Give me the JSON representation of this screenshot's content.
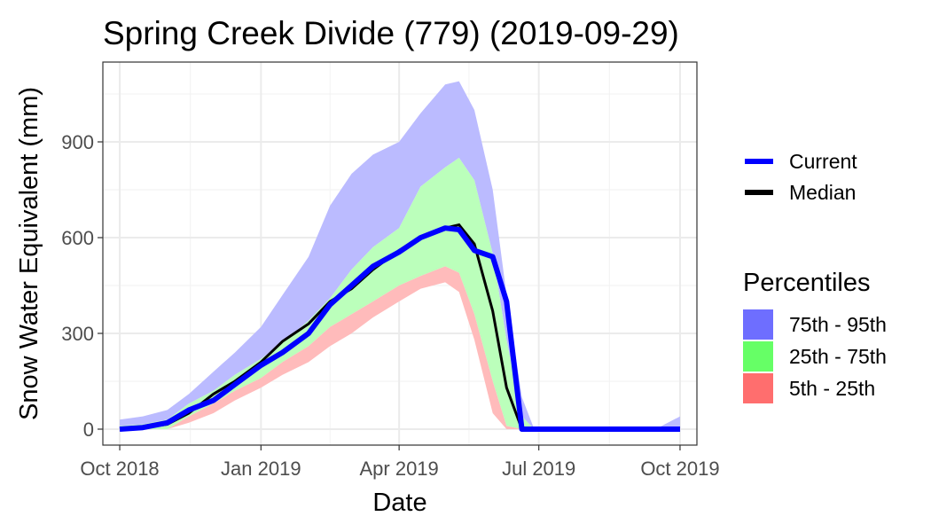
{
  "chart_data": {
    "type": "area",
    "title": "Spring Creek Divide (779) (2019-09-29)",
    "xlabel": "Date",
    "ylabel": "Snow Water Equivalent (mm)",
    "x_ticks": [
      "Oct 2018",
      "Jan 2019",
      "Apr 2019",
      "Jul 2019",
      "Oct 2019"
    ],
    "x_tick_dates": [
      "2018-10-01",
      "2019-01-01",
      "2019-04-01",
      "2019-07-01",
      "2019-10-01"
    ],
    "y_ticks": [
      0,
      300,
      600,
      900
    ],
    "xlim": [
      "2018-09-20",
      "2019-10-12"
    ],
    "ylim": [
      -50,
      1150
    ],
    "grid": true,
    "legend_placement": "right",
    "legend_lines": [
      {
        "label": "Current",
        "color": "#0000ff"
      },
      {
        "label": "Median",
        "color": "#000000"
      }
    ],
    "legend_title": "Percentiles",
    "legend_fills": [
      {
        "label": "75th - 95th",
        "color": "#6e6eff"
      },
      {
        "label": "25th - 75th",
        "color": "#66ff66"
      },
      {
        "label": "5th - 25th",
        "color": "#ff6e6e"
      }
    ],
    "band_colors": {
      "75th - 95th": "#bbbbff",
      "25th - 75th": "#bbffbb",
      "5th - 25th": "#ffbbbb"
    },
    "dates": [
      "2018-10-01",
      "2018-10-16",
      "2018-11-01",
      "2018-11-15",
      "2018-12-01",
      "2018-12-15",
      "2019-01-01",
      "2019-01-15",
      "2019-02-01",
      "2019-02-15",
      "2019-03-01",
      "2019-03-15",
      "2019-04-01",
      "2019-04-15",
      "2019-05-01",
      "2019-05-10",
      "2019-05-20",
      "2019-06-01",
      "2019-06-10",
      "2019-06-20",
      "2019-06-28",
      "2019-07-01",
      "2019-09-15",
      "2019-10-01"
    ],
    "series": [
      {
        "name": "95th",
        "values": [
          30,
          40,
          60,
          110,
          180,
          240,
          320,
          420,
          540,
          700,
          800,
          860,
          900,
          990,
          1080,
          1090,
          1000,
          750,
          420,
          100,
          0,
          0,
          0,
          40
        ]
      },
      {
        "name": "75th",
        "values": [
          10,
          15,
          30,
          80,
          120,
          170,
          220,
          270,
          340,
          410,
          500,
          570,
          630,
          760,
          820,
          850,
          780,
          550,
          280,
          40,
          0,
          0,
          0,
          0
        ]
      },
      {
        "name": "Median",
        "values": [
          0,
          5,
          15,
          50,
          110,
          150,
          210,
          275,
          330,
          400,
          440,
          500,
          560,
          600,
          630,
          640,
          580,
          370,
          130,
          0,
          0,
          0,
          0,
          0
        ]
      },
      {
        "name": "Current",
        "values": [
          0,
          5,
          20,
          60,
          90,
          140,
          200,
          240,
          300,
          390,
          450,
          510,
          555,
          600,
          630,
          625,
          560,
          540,
          400,
          0,
          0,
          0,
          0,
          0
        ]
      },
      {
        "name": "25th",
        "values": [
          0,
          0,
          0,
          40,
          80,
          120,
          160,
          210,
          260,
          320,
          360,
          400,
          450,
          480,
          510,
          490,
          360,
          150,
          10,
          0,
          0,
          0,
          0,
          0
        ]
      },
      {
        "name": "5th",
        "values": [
          0,
          0,
          0,
          20,
          50,
          90,
          130,
          170,
          210,
          260,
          300,
          350,
          400,
          440,
          460,
          430,
          280,
          50,
          0,
          0,
          0,
          0,
          0,
          0
        ]
      }
    ]
  }
}
